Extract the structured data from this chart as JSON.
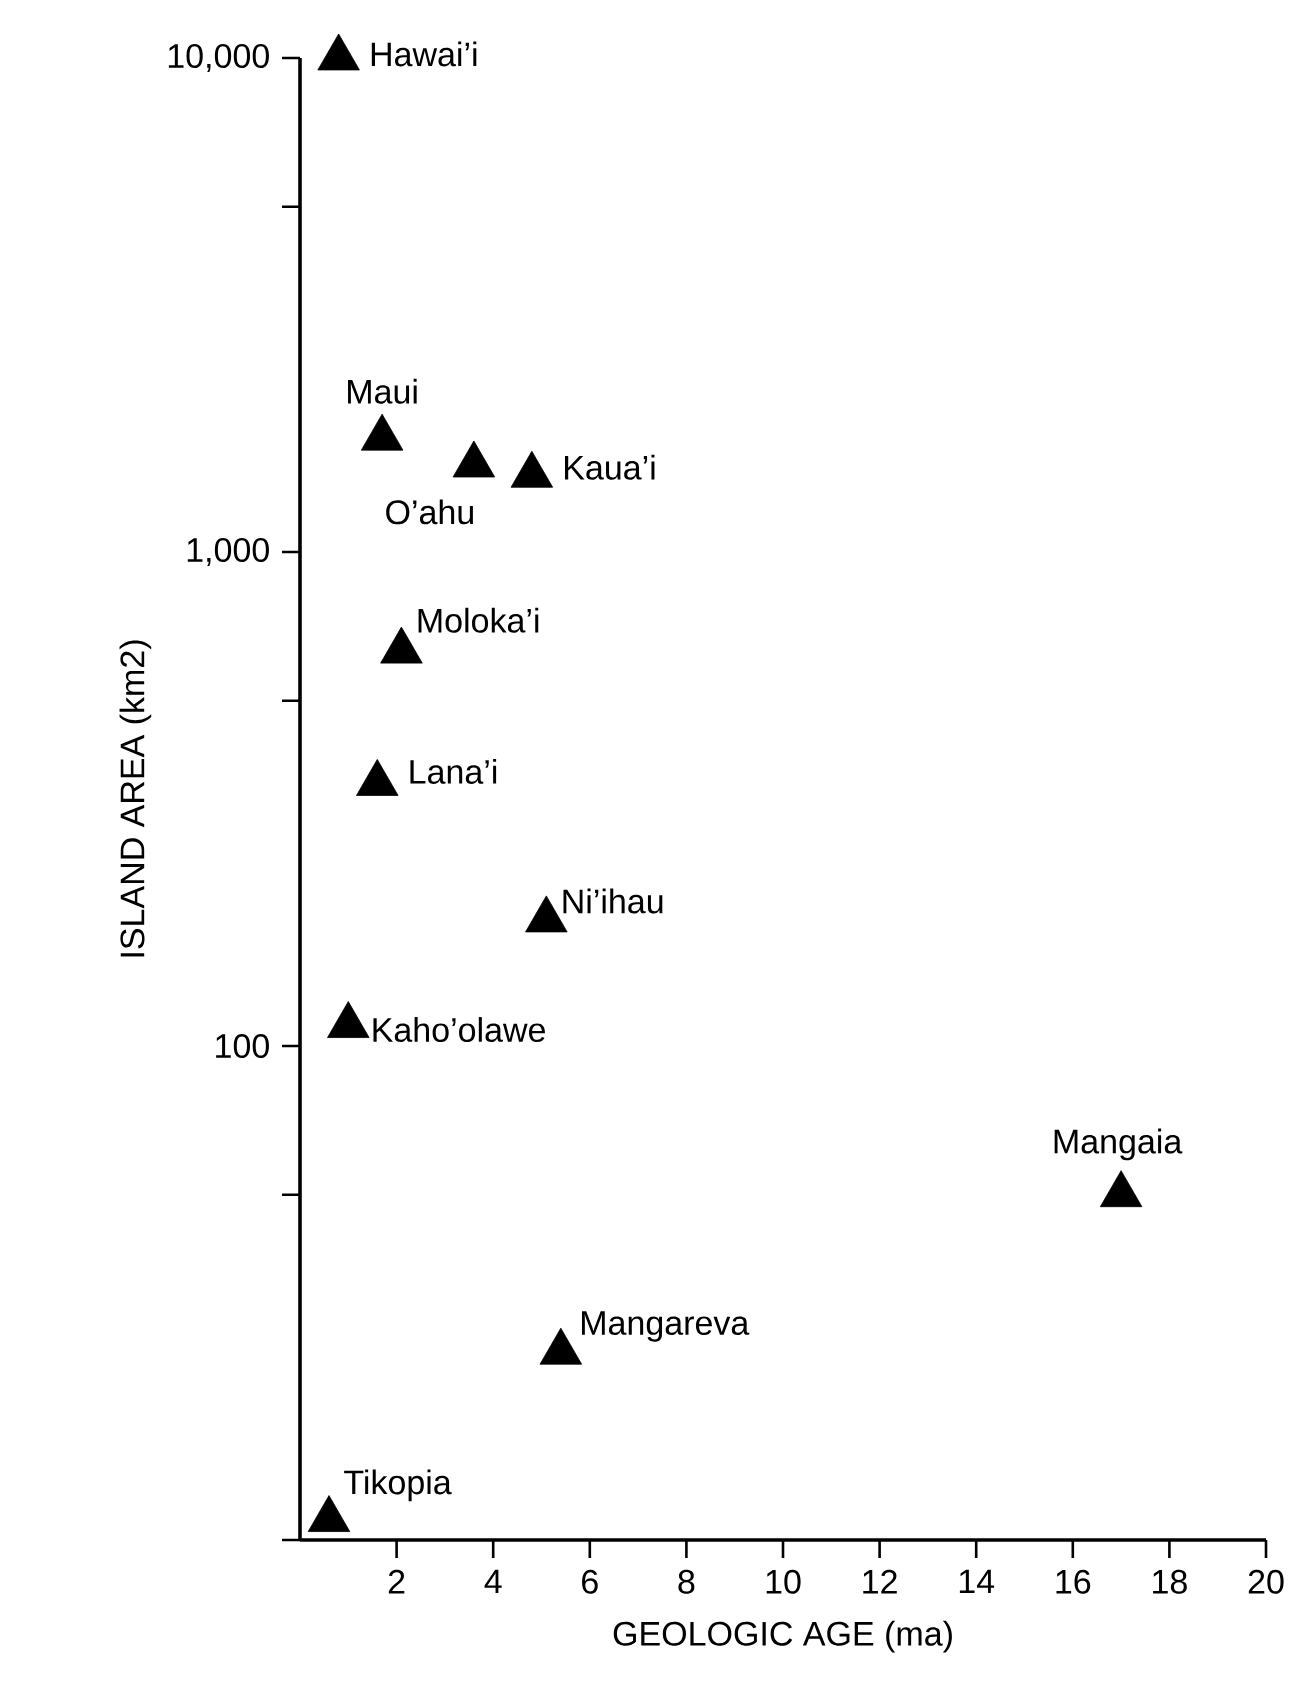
{
  "chart_data": {
    "type": "scatter",
    "xlabel": "GEOLOGIC AGE (ma)",
    "ylabel": "ISLAND AREA (km2)",
    "log": "y",
    "marker": "triangle",
    "xlim": [
      0,
      20
    ],
    "xticks": [
      2,
      4,
      6,
      8,
      10,
      12,
      14,
      16,
      18,
      20
    ],
    "ylim": [
      10,
      10000
    ],
    "yticks": [
      {
        "value": 10,
        "label": null
      },
      {
        "value": 50,
        "label": null
      },
      100,
      {
        "value": 500,
        "label": null
      },
      {
        "value": 1000,
        "label": "1,000"
      },
      {
        "value": 5000,
        "label": null
      },
      {
        "value": 10000,
        "label": "10,000"
      }
    ],
    "series": [
      {
        "name": "Hawai’i",
        "color": "#000000",
        "x": [
          0.8
        ],
        "values": [
          10000
        ]
      },
      {
        "name": "Maui",
        "color": "#000000",
        "x": [
          1.7
        ],
        "values": [
          1700
        ]
      },
      {
        "name": "O’ahu",
        "color": "#000000",
        "x": [
          3.6
        ],
        "values": [
          1500
        ]
      },
      {
        "name": "Kaua’i",
        "color": "#000000",
        "x": [
          4.8
        ],
        "values": [
          1430
        ]
      },
      {
        "name": "Moloka’i",
        "color": "#000000",
        "x": [
          2.1
        ],
        "values": [
          630
        ]
      },
      {
        "name": "Lana’i",
        "color": "#000000",
        "x": [
          1.6
        ],
        "values": [
          340
        ]
      },
      {
        "name": "Ni’ihau",
        "color": "#000000",
        "x": [
          5.1
        ],
        "values": [
          180
        ]
      },
      {
        "name": "Kaho’olawe",
        "color": "#000000",
        "x": [
          1.0
        ],
        "values": [
          110
        ]
      },
      {
        "name": "Mangaia",
        "color": "#000000",
        "x": [
          17.0
        ],
        "values": [
          50
        ]
      },
      {
        "name": "Mangareva",
        "color": "#000000",
        "x": [
          5.4
        ],
        "values": [
          24
        ]
      },
      {
        "name": "Tikopia",
        "color": "#000000",
        "x": [
          0.6
        ],
        "values": [
          11
        ]
      }
    ]
  }
}
